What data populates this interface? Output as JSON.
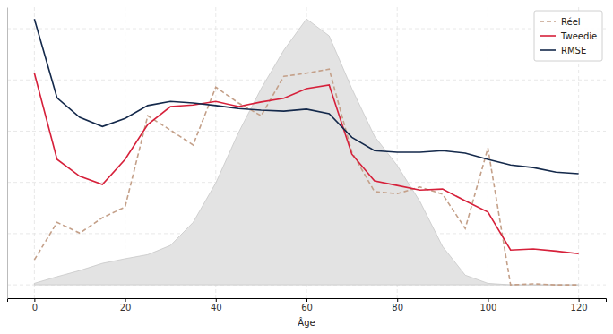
{
  "chart_data": {
    "type": "line",
    "x_label": "Âge",
    "x": [
      0,
      5,
      10,
      15,
      20,
      25,
      30,
      35,
      40,
      45,
      50,
      55,
      60,
      65,
      70,
      75,
      80,
      85,
      90,
      95,
      100,
      105,
      110,
      115,
      120
    ],
    "xlim": [
      -6,
      126
    ],
    "xticks": [
      0,
      20,
      40,
      60,
      80,
      100,
      120
    ],
    "ylim": [
      -0.26,
      5.42
    ],
    "yticks": [
      0,
      1,
      2,
      3,
      4,
      5
    ],
    "tick_labels": "x",
    "grid": true,
    "legend": "upper right",
    "series": [
      {
        "type": "area",
        "color": "#e3e3e3",
        "values": [
          0.03,
          0.16,
          0.28,
          0.42,
          0.51,
          0.59,
          0.77,
          1.22,
          1.99,
          2.97,
          3.83,
          4.58,
          5.19,
          4.86,
          3.83,
          2.9,
          2.33,
          1.63,
          0.75,
          0.19,
          0.03,
          0,
          0,
          0,
          0
        ]
      },
      {
        "name": "Réel",
        "type": "line",
        "color": "#c4a089",
        "line_style": "dashed",
        "values": [
          0.49,
          1.22,
          1.01,
          1.31,
          1.52,
          3.3,
          3.02,
          2.73,
          3.86,
          3.55,
          3.3,
          4.07,
          4.13,
          4.21,
          2.59,
          1.82,
          1.78,
          1.91,
          1.77,
          1.1,
          2.67,
          0,
          0.02,
          0,
          0
        ]
      },
      {
        "name": "Tweedie",
        "type": "line",
        "color": "#d6203a",
        "line_style": "solid",
        "values": [
          4.13,
          2.45,
          2.12,
          1.96,
          2.45,
          3.13,
          3.48,
          3.51,
          3.58,
          3.48,
          3.57,
          3.64,
          3.83,
          3.9,
          2.55,
          2.03,
          1.94,
          1.85,
          1.87,
          1.64,
          1.42,
          0.68,
          0.7,
          0.66,
          0.61
        ]
      },
      {
        "name": "RMSE",
        "type": "line",
        "color": "#14294b",
        "line_style": "solid",
        "values": [
          5.19,
          3.65,
          3.27,
          3.09,
          3.25,
          3.5,
          3.58,
          3.55,
          3.5,
          3.44,
          3.41,
          3.39,
          3.43,
          3.34,
          2.88,
          2.62,
          2.59,
          2.59,
          2.62,
          2.57,
          2.45,
          2.34,
          2.29,
          2.2,
          2.17
        ]
      }
    ]
  }
}
